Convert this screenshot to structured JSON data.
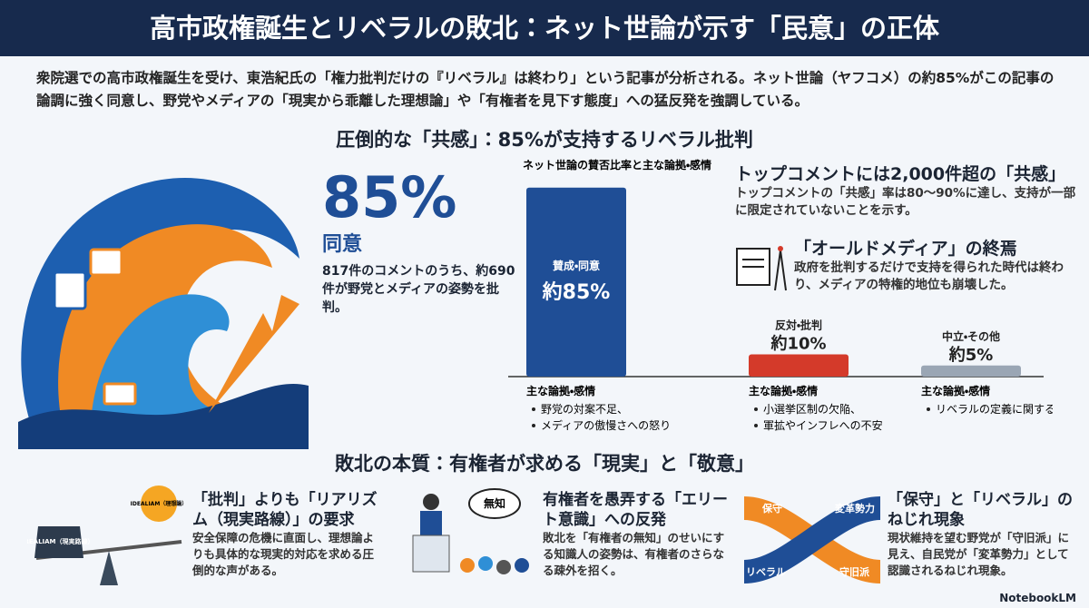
{
  "header": {
    "title": "高市政権誕生とリベラルの敗北：ネット世論が示す「民意」の正体"
  },
  "intro": "衆院選での高市政権誕生を受け、東浩紀氏の「権力批判だけの『リベラル』は終わり」という記事が分析される。ネット世論（ヤフコメ）の約85%がこの記事の論調に強く同意し、野党やメディアの「現実から乖離した理想論」や「有権者を見下す態度」への猛反発を強調している。",
  "section1": {
    "title": "圧倒的な「共感」：85%が支持するリベラル批判",
    "stat": {
      "value": "85%",
      "label": "同意",
      "text": "817件のコメントのうち、約690件が野党とメディアの姿勢を批判。"
    },
    "chart": {
      "title": "ネット世論の賛否比率と主な論拠・感情",
      "bars": [
        {
          "label": "賛成・同意",
          "value": 85,
          "value_label": "約85%",
          "color": "#1f4e96",
          "reasons_title": "主な論拠・感情",
          "reasons": [
            "野党の対案不足、",
            "メディアの傲慢さへの怒り"
          ]
        },
        {
          "label": "反対・批判",
          "value": 10,
          "value_label": "約10%",
          "color": "#d43a2a",
          "reasons_title": "主な論拠・感情",
          "reasons": [
            "小選挙区制の欠陥、",
            "軍拡やインフレへの不安"
          ]
        },
        {
          "label": "中立・その他",
          "value": 5,
          "value_label": "約5%",
          "color": "#9aa6b4",
          "reasons_title": "主な論拠・感情",
          "reasons": [
            "リベラルの定義に関する議論など"
          ]
        }
      ]
    },
    "cards": [
      {
        "title": "トップコメントには2,000件超の「共感」",
        "text": "トップコメントの「共感」率は80〜90%に達し、支持が一部に限定されていないことを示す。"
      },
      {
        "title": "「オールドメディア」の終焉",
        "text": "政府を批判するだけで支持を得られた時代は終わり、メディアの特権的地位も崩壊した。"
      }
    ]
  },
  "section2": {
    "title": "敗北の本質：有権者が求める「現実」と「敬意」",
    "cards": [
      {
        "title": "「批判」よりも「リアリズム（現実路線）」の要求",
        "text": "安全保障の危機に直面し、理想論よりも具体的な現実的対応を求める圧倒的な声がある。",
        "icon_labels": [
          "REALIAM（現実路線）",
          "IDEALIAM（理想論）"
        ]
      },
      {
        "title": "有権者を愚弄する「エリート意識」への反発",
        "text": "敗北を「有権者の無知」のせいにする知識人の姿勢は、有権者のさらなる疎外を招く。",
        "icon_labels": [
          "無知"
        ]
      },
      {
        "title": "「保守」と「リベラル」のねじれ現象",
        "text": "現状維持を望む野党が「守旧派」に見え、自民党が「変革勢力」として認識されるねじれ現象。",
        "icon_labels": [
          "保守",
          "変革勢力",
          "リベラル",
          "守旧派"
        ]
      }
    ]
  },
  "footer": {
    "brand": "NotebookLM"
  }
}
